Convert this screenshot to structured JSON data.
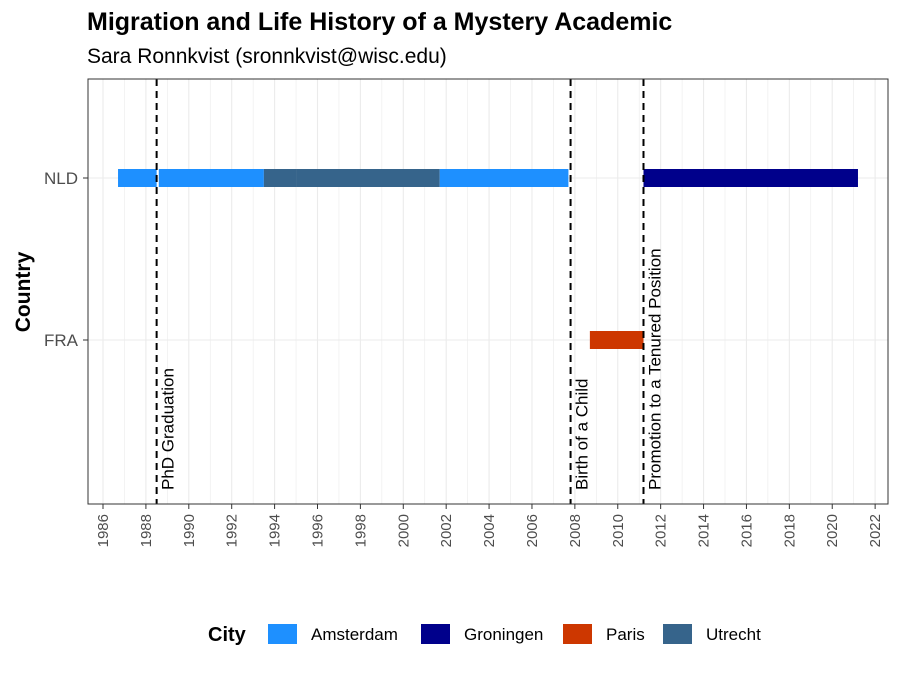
{
  "chart_data": {
    "type": "timeline",
    "title": "Migration and Life History of a Mystery Academic",
    "subtitle": "Sara Ronnkvist (sronnkvist@wisc.edu)",
    "ylabel": "Country",
    "xlabel": "",
    "countries": [
      "NLD",
      "FRA"
    ],
    "xlim": [
      1985.3,
      2022.6
    ],
    "x_ticks": [
      1986,
      1988,
      1990,
      1992,
      1994,
      1996,
      1998,
      2000,
      2002,
      2004,
      2006,
      2008,
      2010,
      2012,
      2014,
      2016,
      2018,
      2020,
      2022
    ],
    "grid": true,
    "legend": {
      "title": "City",
      "position": "bottom",
      "items": [
        {
          "name": "Amsterdam",
          "color": "#1E90FF"
        },
        {
          "name": "Groningen",
          "color": "#00008B"
        },
        {
          "name": "Paris",
          "color": "#CD3700"
        },
        {
          "name": "Utrecht",
          "color": "#36648B"
        }
      ]
    },
    "segments": [
      {
        "country": "NLD",
        "city": "Amsterdam",
        "start": 1986.7,
        "end": 1988.5
      },
      {
        "country": "NLD",
        "city": "Amsterdam",
        "start": 1988.6,
        "end": 1993.5
      },
      {
        "country": "NLD",
        "city": "Utrecht",
        "start": 1993.5,
        "end": 1995.0
      },
      {
        "country": "NLD",
        "city": "Utrecht",
        "start": 1995.0,
        "end": 2001.7
      },
      {
        "country": "NLD",
        "city": "Amsterdam",
        "start": 2001.7,
        "end": 2007.7
      },
      {
        "country": "FRA",
        "city": "Paris",
        "start": 2008.7,
        "end": 2011.2
      },
      {
        "country": "NLD",
        "city": "Groningen",
        "start": 2011.2,
        "end": 2021.2
      }
    ],
    "events": [
      {
        "label": "PhD Graduation",
        "x": 1988.5
      },
      {
        "label": "Birth of a Child",
        "x": 2007.8
      },
      {
        "label": "Promotion to a Tenured Position",
        "x": 2011.2
      }
    ]
  }
}
